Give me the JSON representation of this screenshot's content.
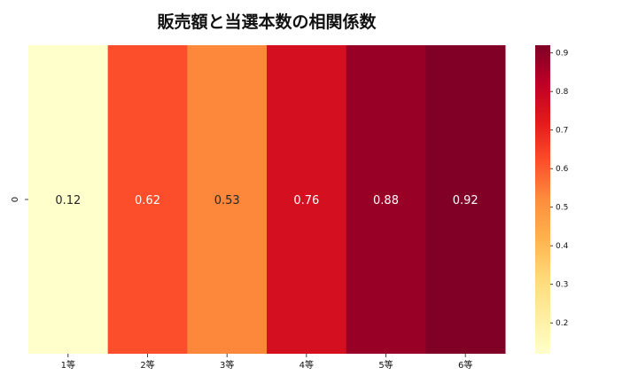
{
  "chart_data": {
    "type": "heatmap",
    "title": "販売額と当選本数の相関係数",
    "x_categories": [
      "1等",
      "2等",
      "3等",
      "4等",
      "5等",
      "6等"
    ],
    "y_categories": [
      "0"
    ],
    "values": [
      [
        0.12,
        0.62,
        0.53,
        0.76,
        0.88,
        0.92
      ]
    ],
    "cell_labels": [
      "0.12",
      "0.62",
      "0.53",
      "0.76",
      "0.88",
      "0.92"
    ],
    "colormap": "YlOrRd",
    "colorbar": {
      "range": [
        0.12,
        0.92
      ],
      "ticks": [
        0.2,
        0.3,
        0.4,
        0.5,
        0.6,
        0.7,
        0.8,
        0.9
      ],
      "tick_labels": [
        "0.2",
        "0.3",
        "0.4",
        "0.5",
        "0.6",
        "0.7",
        "0.8",
        "0.9"
      ],
      "placement": "right"
    },
    "annotation_colors": {
      "light": "#ffffff",
      "dark": "#262626"
    }
  }
}
